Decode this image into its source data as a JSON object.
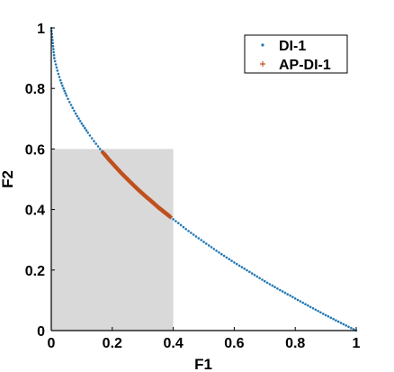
{
  "chart_data": {
    "type": "scatter",
    "xlabel": "F1",
    "ylabel": "F2",
    "xlim": [
      0,
      1
    ],
    "ylim": [
      0,
      1
    ],
    "x_ticks": [
      "0",
      "0.2",
      "0.4",
      "0.6",
      "0.8",
      "1"
    ],
    "y_ticks": [
      "0",
      "0.2",
      "0.4",
      "0.6",
      "0.8",
      "1"
    ],
    "grid": false,
    "legend_position": "top-right",
    "region": {
      "x": [
        0,
        0.4
      ],
      "y": [
        0,
        0.6
      ],
      "color": "#d9d9d9"
    },
    "series": [
      {
        "name": "DI-1",
        "marker": "dot",
        "color": "#1f77b4",
        "x": [
          0,
          0.01,
          0.02,
          0.03,
          0.04,
          0.05,
          0.06,
          0.08,
          0.1,
          0.12,
          0.14,
          0.16,
          0.2,
          0.25,
          0.3,
          0.35,
          0.4,
          0.45,
          0.5,
          0.55,
          0.6,
          0.65,
          0.7,
          0.75,
          0.8,
          0.85,
          0.9,
          0.95,
          1
        ],
        "y": [
          1,
          0.9,
          0.859,
          0.827,
          0.8,
          0.776,
          0.755,
          0.717,
          0.684,
          0.654,
          0.626,
          0.6,
          0.553,
          0.5,
          0.452,
          0.408,
          0.368,
          0.329,
          0.293,
          0.258,
          0.225,
          0.194,
          0.163,
          0.134,
          0.106,
          0.078,
          0.051,
          0.025,
          0
        ]
      },
      {
        "name": "AP-DI-1",
        "marker": "plus",
        "color": "#c0501e",
        "x": [
          0.17,
          0.19,
          0.21,
          0.23,
          0.25,
          0.27,
          0.29,
          0.31,
          0.33,
          0.35,
          0.37,
          0.39
        ],
        "y": [
          0.588,
          0.564,
          0.542,
          0.52,
          0.5,
          0.48,
          0.461,
          0.443,
          0.426,
          0.408,
          0.392,
          0.376
        ]
      }
    ]
  }
}
